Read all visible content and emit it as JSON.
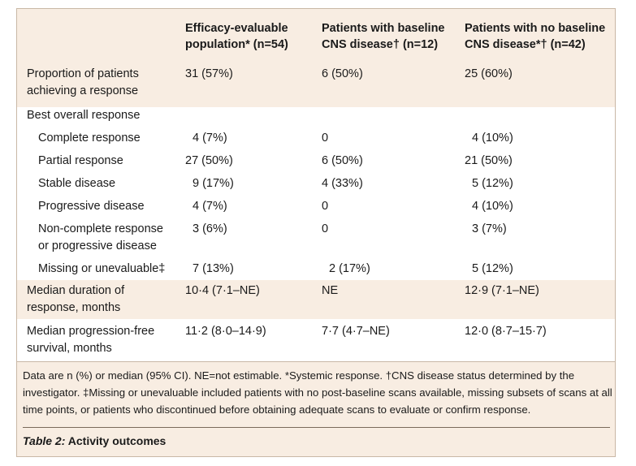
{
  "header": {
    "col1": [
      "Efficacy-evaluable",
      "population* (n=54)"
    ],
    "col2": [
      "Patients with baseline",
      "CNS disease† (n=12)"
    ],
    "col3": [
      "Patients with no baseline",
      "CNS disease*† (n=42)"
    ]
  },
  "rows": [
    {
      "label": [
        "Proportion of patients",
        "achieving a response"
      ],
      "v1": "31 (57%)",
      "v2": "6 (50%)",
      "v3": "25 (60%)"
    },
    {
      "label": [
        "Best overall response"
      ],
      "v1": "",
      "v2": "",
      "v3": ""
    },
    {
      "label": [
        "Complete response"
      ],
      "v1": "4 (7%)",
      "v2": "0",
      "v3": "4 (10%)"
    },
    {
      "label": [
        "Partial response"
      ],
      "v1": "27 (50%)",
      "v2": "6 (50%)",
      "v3": "21 (50%)"
    },
    {
      "label": [
        "Stable disease"
      ],
      "v1": "9 (17%)",
      "v2": "4 (33%)",
      "v3": "5 (12%)"
    },
    {
      "label": [
        "Progressive disease"
      ],
      "v1": "4 (7%)",
      "v2": "0",
      "v3": "4 (10%)"
    },
    {
      "label": [
        "Non-complete response",
        "or progressive disease"
      ],
      "v1": "3 (6%)",
      "v2": "0",
      "v3": "3 (7%)"
    },
    {
      "label": [
        "Missing or unevaluable‡"
      ],
      "v1": "7 (13%)",
      "v2": "2 (17%)",
      "v3": "5 (12%)"
    },
    {
      "label": [
        "Median duration of",
        "response, months"
      ],
      "v1": "10·4 (7·1–NE)",
      "v2": "NE",
      "v3": "12·9 (7·1–NE)"
    },
    {
      "label": [
        "Median progression-free",
        "survival, months"
      ],
      "v1": "11·2 (8·0–14·9)",
      "v2": "7·7 (4·7–NE)",
      "v3": "12·0 (8·7–15·7)"
    }
  ],
  "footnote": "Data are n (%) or median (95% CI). NE=not estimable. *Systemic response. †CNS disease status determined by the investigator. ‡Missing or unevaluable included patients with no post-baseline scans available, missing subsets of scans at all time points, or patients who discontinued before obtaining adequate scans to evaluate or confirm response.",
  "caption": {
    "label": "Table 2:",
    "title": " Activity outcomes"
  }
}
